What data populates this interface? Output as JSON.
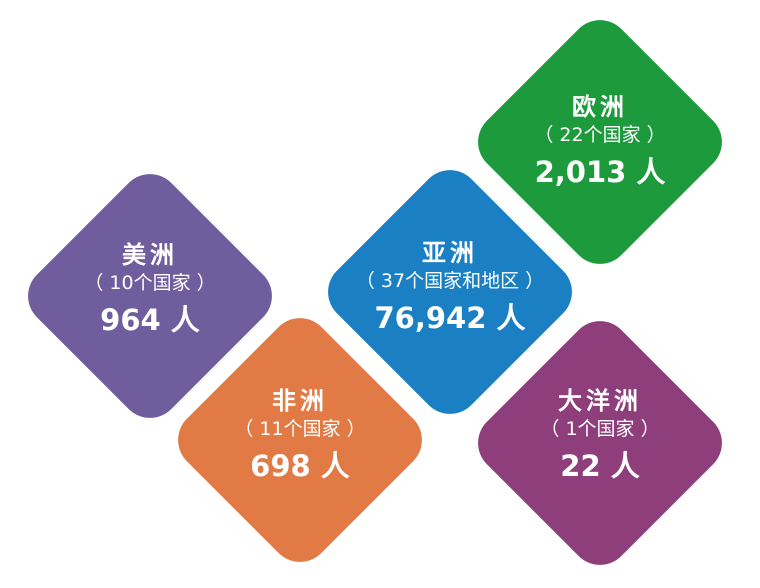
{
  "regions": [
    {
      "name": "欧洲",
      "countries": "（ 22个国家 ）",
      "count": "2,013 人",
      "color": "#1c9a3c"
    },
    {
      "name": "美洲",
      "countries": "（ 10个国家 ）",
      "count": "964 人",
      "color": "#6f5d9d"
    },
    {
      "name": "亚洲",
      "countries": "（ 37个国家和地区 ）",
      "count": "76,942 人",
      "color": "#1b7fc4"
    },
    {
      "name": "非洲",
      "countries": "（ 11个国家 ）",
      "count": "698 人",
      "color": "#e17a45"
    },
    {
      "name": "大洋洲",
      "countries": "（ 1个国家 ）",
      "count": "22 人",
      "color": "#8e3f7b"
    }
  ]
}
